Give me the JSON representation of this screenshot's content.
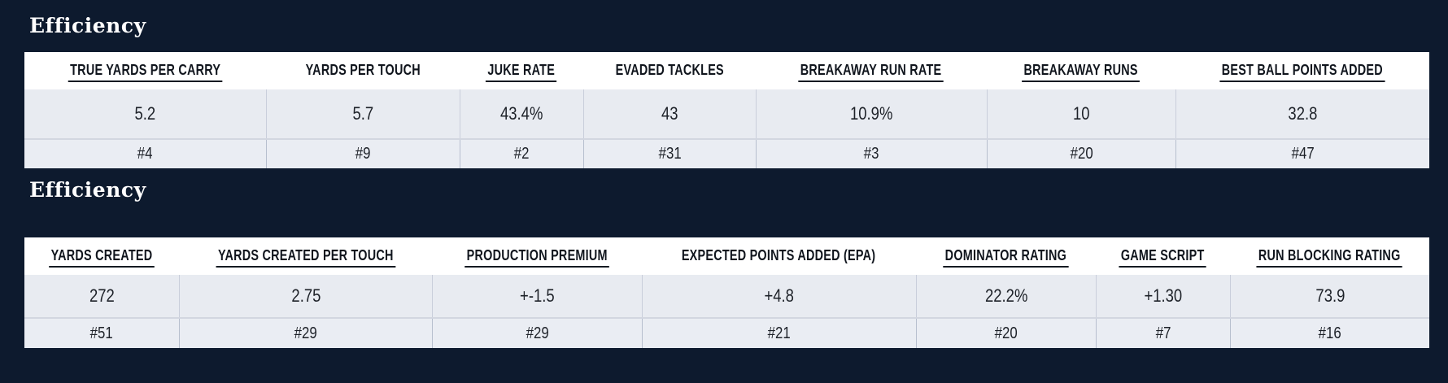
{
  "colors": {
    "background": "#0d1a2e",
    "header_bg": "#ffffff",
    "value_row_bg": "#e8ebf1",
    "rank_row_bg": "#eaedf3",
    "divider": "#c9cedb",
    "row_separator": "#d2d6e0",
    "title_text": "#ffffff",
    "header_text": "#10151d",
    "cell_text": "#1d2128",
    "header_underline": "#141a22"
  },
  "sections": [
    {
      "title": "Efficiency",
      "columns": [
        {
          "label": "TRUE YARDS PER CARRY",
          "underlined": true,
          "value": "5.2",
          "rank": "#4"
        },
        {
          "label": "YARDS PER TOUCH",
          "underlined": false,
          "value": "5.7",
          "rank": "#9"
        },
        {
          "label": "JUKE RATE",
          "underlined": true,
          "value": "43.4%",
          "rank": "#2"
        },
        {
          "label": "EVADED TACKLES",
          "underlined": false,
          "value": "43",
          "rank": "#31"
        },
        {
          "label": "BREAKAWAY RUN RATE",
          "underlined": true,
          "value": "10.9%",
          "rank": "#3"
        },
        {
          "label": "BREAKAWAY RUNS",
          "underlined": true,
          "value": "10",
          "rank": "#20"
        },
        {
          "label": "BEST BALL POINTS ADDED",
          "underlined": true,
          "value": "32.8",
          "rank": "#47"
        }
      ]
    },
    {
      "title": "Efficiency",
      "columns": [
        {
          "label": "YARDS CREATED",
          "underlined": true,
          "value": "272",
          "rank": "#51"
        },
        {
          "label": "YARDS CREATED PER TOUCH",
          "underlined": true,
          "value": "2.75",
          "rank": "#29"
        },
        {
          "label": "PRODUCTION PREMIUM",
          "underlined": true,
          "value": "+-1.5",
          "rank": "#29"
        },
        {
          "label": "EXPECTED POINTS ADDED (EPA)",
          "underlined": false,
          "value": "+4.8",
          "rank": "#21"
        },
        {
          "label": "DOMINATOR RATING",
          "underlined": true,
          "value": "22.2%",
          "rank": "#20"
        },
        {
          "label": "GAME SCRIPT",
          "underlined": true,
          "value": "+1.30",
          "rank": "#7"
        },
        {
          "label": "RUN BLOCKING RATING",
          "underlined": true,
          "value": "73.9",
          "rank": "#16"
        }
      ]
    }
  ]
}
